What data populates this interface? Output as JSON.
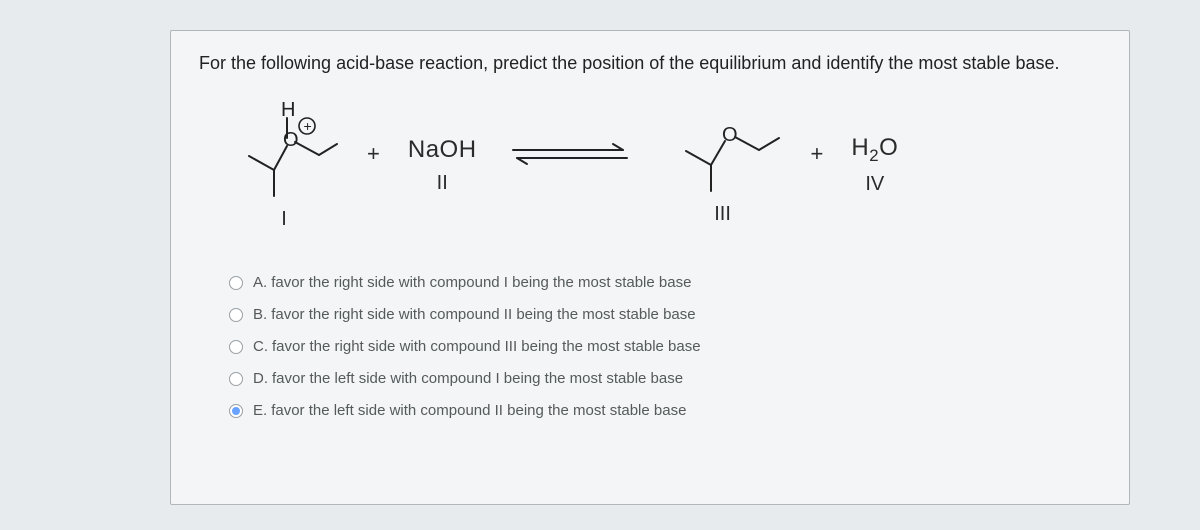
{
  "prompt": "For the following acid-base reaction, predict the position of the equilibrium and identify the most stable base.",
  "equation": {
    "reagent2": {
      "formula": "NaOH",
      "label": "II"
    },
    "product1_label": "III",
    "product2": {
      "formula_html": "H<sub>2</sub>O",
      "label": "IV"
    },
    "plus": "+",
    "reactant1_label": "I"
  },
  "options": [
    {
      "letter": "A.",
      "text": "favor the right side with compound I being the most stable base",
      "selected": false
    },
    {
      "letter": "B.",
      "text": "favor the right side with compound II being the most stable base",
      "selected": false
    },
    {
      "letter": "C.",
      "text": "favor the right side with compound III being the most stable base",
      "selected": false
    },
    {
      "letter": "D.",
      "text": "favor the left side with compound I being the most stable base",
      "selected": false
    },
    {
      "letter": "E.",
      "text": "favor the left side with compound II being the most stable base",
      "selected": true
    }
  ],
  "colors": {
    "page_bg": "#e8ebed",
    "card_bg": "#f3f5f6",
    "card_border": "#b0b6ba",
    "text": "#2b2b2b",
    "option_text": "#555a5d",
    "radio_fill": "#6aa3ff"
  }
}
